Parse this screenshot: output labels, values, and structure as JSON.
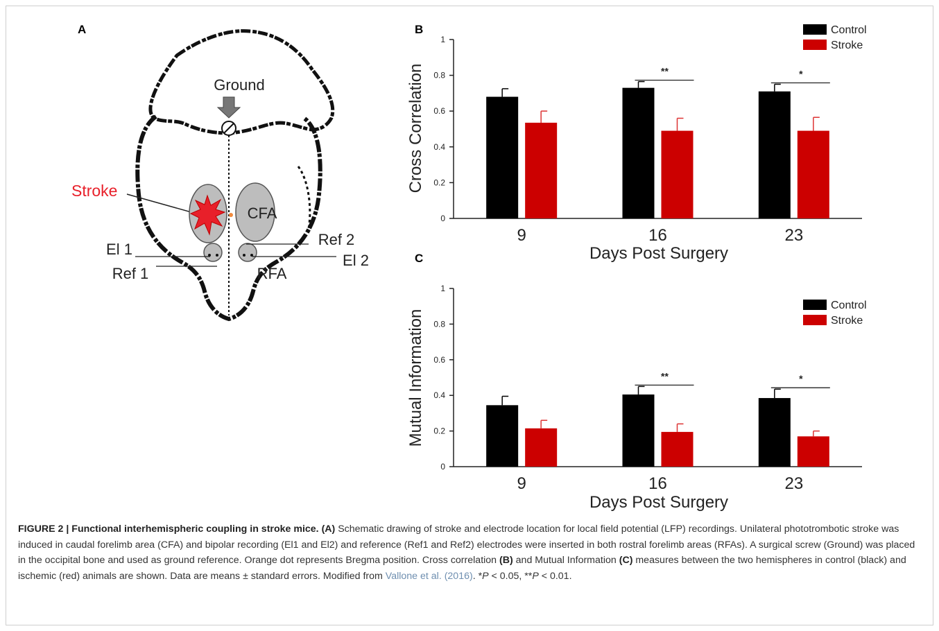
{
  "panel_a": {
    "label": "A",
    "ground": "Ground",
    "stroke": "Stroke",
    "cfa": "CFA",
    "ref2": "Ref 2",
    "el1": "El 1",
    "el2": "El 2",
    "ref1": "Ref 1",
    "rfa": "RFA",
    "stroke_color": "#e8202a",
    "bregma_color": "#f08a3c"
  },
  "chart_data": [
    {
      "panel": "B",
      "type": "bar",
      "categories": [
        "9",
        "16",
        "23"
      ],
      "xlabel": "Days Post Surgery",
      "ylabel": "Cross Correlation",
      "ylim": [
        0,
        1
      ],
      "yticks": [
        "0",
        "0.2",
        "0.4",
        "0.6",
        "0.8",
        "1"
      ],
      "legend_placement": "top-right",
      "series": [
        {
          "name": "Control",
          "color": "#000000",
          "values": [
            0.68,
            0.73,
            0.71
          ],
          "errors": [
            0.045,
            0.035,
            0.04
          ]
        },
        {
          "name": "Stroke",
          "color": "#cc0000",
          "values": [
            0.535,
            0.49,
            0.49
          ],
          "errors": [
            0.065,
            0.07,
            0.075
          ]
        }
      ],
      "annotations": [
        "",
        "**",
        "*"
      ]
    },
    {
      "panel": "C",
      "type": "bar",
      "categories": [
        "9",
        "16",
        "23"
      ],
      "xlabel": "Days Post Surgery",
      "ylabel": "Mutual Information",
      "ylim": [
        0,
        1
      ],
      "yticks": [
        "0",
        "0.2",
        "0.4",
        "0.6",
        "0.8",
        "1"
      ],
      "legend_placement": "top-right",
      "series": [
        {
          "name": "Control",
          "color": "#000000",
          "values": [
            0.345,
            0.405,
            0.385
          ],
          "errors": [
            0.05,
            0.045,
            0.05
          ]
        },
        {
          "name": "Stroke",
          "color": "#cc0000",
          "values": [
            0.215,
            0.195,
            0.17
          ],
          "errors": [
            0.045,
            0.045,
            0.03
          ]
        }
      ],
      "annotations": [
        "",
        "**",
        "*"
      ]
    }
  ],
  "caption": {
    "lead": "FIGURE 2 | Functional interhemispheric coupling in stroke mice.",
    "a_label": "(A)",
    "text1": " Schematic drawing of stroke and electrode location for local field potential (LFP) recordings. Unilateral phototrombotic stroke was induced in caudal forelimb area (CFA) and bipolar recording (El1 and El2) and reference (Ref1 and Ref2) electrodes were inserted in both rostral forelimb areas (RFAs). A surgical screw (Ground) was placed in the occipital bone and used as ground reference. Orange dot represents Bregma position. Cross correlation ",
    "b_label": "(B)",
    "text2": " and Mutual Information ",
    "c_label": "(C)",
    "text3": " measures between the two hemispheres in control (black) and ischemic (red) animals are shown. Data are means ± standard errors. Modified from ",
    "ref": "Vallone et al. (2016)",
    "text4": ". *",
    "p1": "P",
    "text5": " < 0.05, **",
    "p2": "P",
    "text6": " < 0.01."
  }
}
